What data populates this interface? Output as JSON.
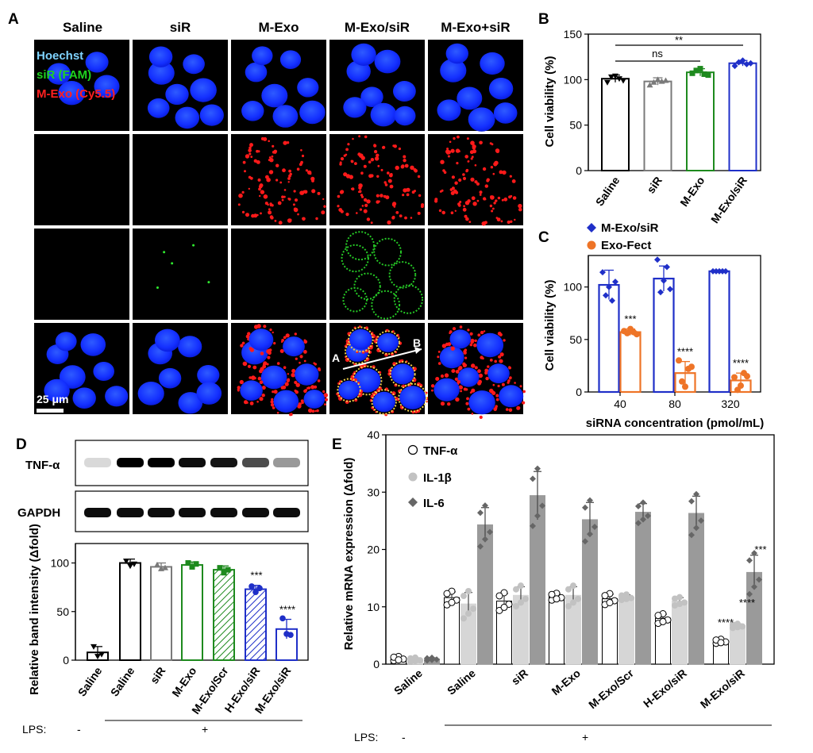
{
  "panel_labels": {
    "a": "A",
    "b": "B",
    "c": "C",
    "d": "D",
    "e": "E"
  },
  "panel_a": {
    "columns": [
      "Saline",
      "siR",
      "M-Exo",
      "M-Exo/siR",
      "M-Exo+siR"
    ],
    "channel_legend": [
      {
        "text": "Hoechst",
        "color": "#7fd3ff"
      },
      {
        "text": "siR (FAM)",
        "color": "#1fd21f"
      },
      {
        "text": "M-Exo (Cy5.5)",
        "color": "#ff2020"
      }
    ],
    "scale_bar": "25 μm",
    "line_start": "A",
    "line_end": "B"
  },
  "chart_data": [
    {
      "id": "B",
      "type": "bar",
      "categories": [
        "Saline",
        "siR",
        "M-Exo",
        "M-Exo/siR"
      ],
      "values": [
        101,
        98,
        108,
        118
      ],
      "errors": [
        4,
        4,
        4,
        3
      ],
      "points": [
        [
          97,
          103,
          104,
          101,
          99
        ],
        [
          94,
          97,
          100,
          98,
          99
        ],
        [
          107,
          110,
          112,
          106,
          105
        ],
        [
          115,
          119,
          121,
          117,
          118
        ]
      ],
      "colors": [
        "#000000",
        "#7a7a7a",
        "#1e8a1e",
        "#1f2fc8"
      ],
      "ylabel": "Cell viability (%)",
      "ylim": [
        0,
        150
      ],
      "yticks": [
        0,
        50,
        100,
        150
      ],
      "annotations": [
        {
          "text": "ns"
        },
        {
          "text": "**"
        }
      ]
    },
    {
      "id": "C",
      "type": "bar",
      "categories": [
        "40",
        "80",
        "320"
      ],
      "xlabel": "siRNA concentration (pmol/mL)",
      "ylabel": "Cell viability (%)",
      "ylim": [
        0,
        130
      ],
      "yticks": [
        0,
        50,
        100
      ],
      "series": [
        {
          "name": "M-Exo/siR",
          "color": "#1f2fc8",
          "values": [
            102,
            108,
            115
          ],
          "errors": [
            14,
            12,
            1
          ],
          "points": [
            [
              114,
              92,
              100,
              87,
              105
            ],
            [
              126,
              95,
              106,
              119,
              98
            ],
            [
              115,
              115,
              115,
              115,
              115
            ]
          ]
        },
        {
          "name": "Exo-Fect",
          "color": "#ee7427",
          "values": [
            57,
            18,
            11
          ],
          "errors": [
            3,
            11,
            7
          ],
          "points": [
            [
              58,
              56,
              60,
              57,
              55
            ],
            [
              30,
              10,
              5,
              22,
              24
            ],
            [
              14,
              2,
              6,
              18,
              15
            ]
          ]
        }
      ],
      "significance": [
        "***",
        "****",
        "****"
      ]
    },
    {
      "id": "D",
      "type": "bar",
      "categories": [
        "Saline",
        "Saline",
        "siR",
        "M-Exo",
        "M-Exo/Scr",
        "H-Exo/siR",
        "M-Exo/siR"
      ],
      "values": [
        8,
        100,
        96,
        98,
        93,
        73,
        32
      ],
      "errors": [
        6,
        4,
        4,
        3,
        4,
        4,
        10
      ],
      "points": [
        [
          14,
          4,
          6
        ],
        [
          102,
          97,
          99
        ],
        [
          98,
          94,
          95
        ],
        [
          100,
          96,
          99
        ],
        [
          95,
          90,
          93
        ],
        [
          76,
          70,
          74
        ],
        [
          43,
          27,
          26
        ]
      ],
      "colors": [
        "#000000",
        "#000000",
        "#7a7a7a",
        "#1e8a1e",
        "#1e8a1e",
        "#1f2fc8",
        "#1f2fc8"
      ],
      "hatched": [
        false,
        false,
        false,
        false,
        true,
        true,
        false
      ],
      "significance": [
        "",
        "",
        "",
        "",
        "",
        "***",
        "****"
      ],
      "ylabel": "Relative band intensity (Δfold)",
      "ylim": [
        0,
        120
      ],
      "yticks": [
        0,
        50,
        100
      ],
      "lps": [
        "-",
        "+"
      ],
      "lps_label": "LPS:",
      "blot_labels": [
        "TNF-α",
        "GAPDH"
      ]
    },
    {
      "id": "E",
      "type": "bar",
      "categories": [
        "Saline",
        "Saline",
        "siR",
        "M-Exo",
        "M-Exo/Scr",
        "H-Exo/siR",
        "M-Exo/siR"
      ],
      "ylabel": "Relative mRNA expression (Δfold)",
      "ylim": [
        0,
        40
      ],
      "yticks": [
        0,
        10,
        20,
        30,
        40
      ],
      "lps": [
        "-",
        "+"
      ],
      "lps_label": "LPS:",
      "series": [
        {
          "name": "TNF-α",
          "values": [
            1,
            11.6,
            11,
            11.8,
            11.4,
            8,
            4
          ],
          "errors": [
            0.3,
            1,
            1.3,
            0.5,
            0.8,
            0.7,
            0.3
          ],
          "color": "#ffffff",
          "marker": "#000000"
        },
        {
          "name": "IL-1β",
          "values": [
            0.8,
            10.5,
            12,
            12,
            11.7,
            11,
            6.7
          ],
          "errors": [
            0.3,
            2,
            1.5,
            1.5,
            0.4,
            0.6,
            0.3
          ],
          "color": "#d6d6d6",
          "marker": "#c2c2c2"
        },
        {
          "name": "IL-6",
          "values": [
            0.9,
            24.3,
            29.4,
            25.2,
            26.5,
            26.3,
            16
          ],
          "errors": [
            0.2,
            3,
            4.2,
            3,
            1.5,
            3,
            3
          ],
          "color": "#9a9a9a",
          "marker": "#666666"
        }
      ],
      "significance": [
        {
          "text": "****"
        },
        {
          "text": "****"
        },
        {
          "text": "***"
        }
      ]
    }
  ]
}
